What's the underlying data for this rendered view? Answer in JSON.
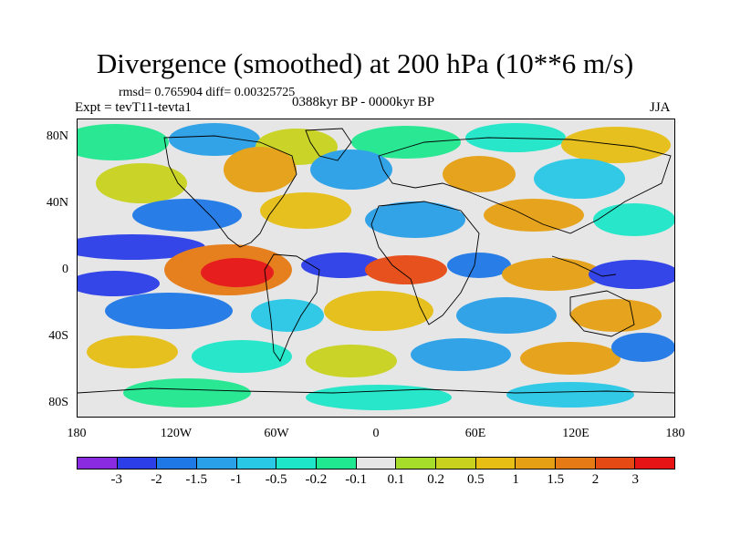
{
  "title": "Divergence (smoothed) at 200 hPa (10**6 m/s)",
  "stats": "rmsd= 0.765904 diff= 0.00325725",
  "experiment": "Expt = tevT11-tevta1",
  "period": "0388kyr BP - 0000kyr BP",
  "season": "JJA",
  "lat_labels": [
    "80N",
    "40N",
    "0",
    "40S",
    "80S"
  ],
  "lon_labels": [
    "180",
    "120W",
    "60W",
    "0",
    "60E",
    "120E",
    "180"
  ],
  "colorbar": {
    "colors": [
      "#8a2be2",
      "#2b3ee8",
      "#1e78e6",
      "#2aa0e8",
      "#28c8e6",
      "#1ee6c8",
      "#20e890",
      "#e6e6e6",
      "#a6dc2a",
      "#c8d21e",
      "#e6be14",
      "#e6a014",
      "#e67a14",
      "#e64a14",
      "#e61414"
    ],
    "labels": [
      "-3",
      "-2",
      "-1.5",
      "-1",
      "-0.5",
      "-0.2",
      "-0.1",
      "0.1",
      "0.2",
      "0.5",
      "1",
      "1.5",
      "2",
      "3"
    ]
  }
}
